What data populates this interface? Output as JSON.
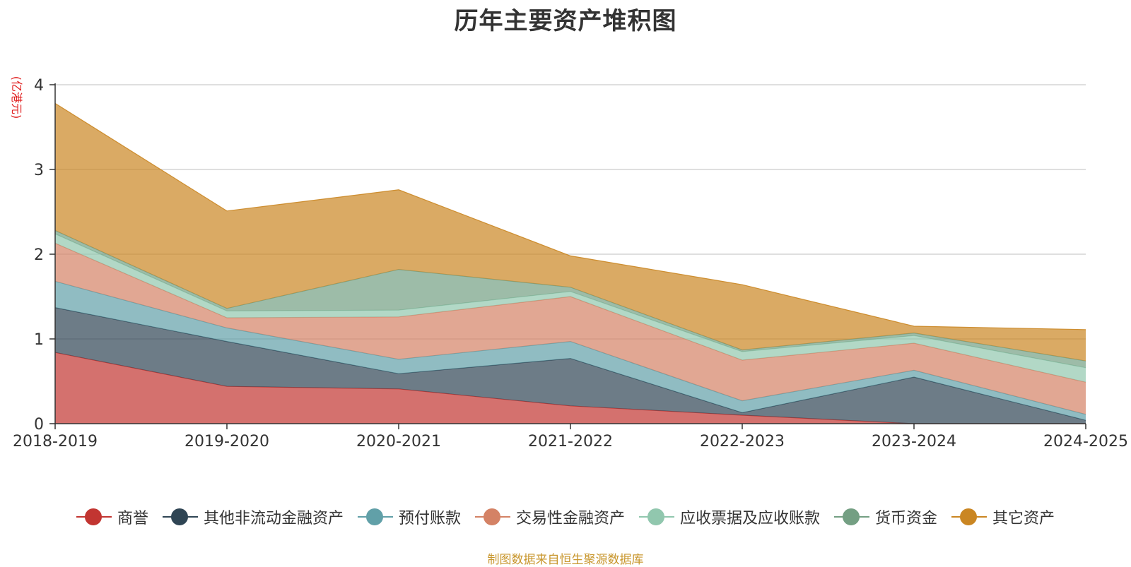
{
  "chart_data": {
    "type": "area",
    "stacked": true,
    "title": "历年主要资产堆积图",
    "ylabel": "(亿港元)",
    "xlabel": "",
    "categories": [
      "2018-2019",
      "2019-2020",
      "2020-2021",
      "2021-2022",
      "2022-2023",
      "2023-2024",
      "2024-2025"
    ],
    "ylim": [
      0,
      4
    ],
    "yticks": [
      0,
      1,
      2,
      3,
      4
    ],
    "grid": true,
    "legend_position": "bottom",
    "series": [
      {
        "name": "商誉",
        "color": "#c23531",
        "values": [
          0.84,
          0.44,
          0.41,
          0.21,
          0.1,
          0.0,
          0.0
        ]
      },
      {
        "name": "其他非流动金融资产",
        "color": "#2f4554",
        "values": [
          0.53,
          0.53,
          0.18,
          0.56,
          0.03,
          0.55,
          0.04
        ]
      },
      {
        "name": "预付账款",
        "color": "#61a0a8",
        "values": [
          0.31,
          0.16,
          0.17,
          0.2,
          0.14,
          0.08,
          0.07
        ]
      },
      {
        "name": "交易性金融资产",
        "color": "#d48265",
        "values": [
          0.45,
          0.12,
          0.5,
          0.53,
          0.48,
          0.32,
          0.38
        ]
      },
      {
        "name": "应收票据及应收账款",
        "color": "#91c7ae",
        "values": [
          0.11,
          0.08,
          0.08,
          0.06,
          0.1,
          0.09,
          0.17
        ]
      },
      {
        "name": "货币资金",
        "color": "#749f83",
        "values": [
          0.04,
          0.03,
          0.48,
          0.05,
          0.02,
          0.03,
          0.08
        ]
      },
      {
        "name": "其它资产",
        "color": "#ca8622",
        "values": [
          1.5,
          1.15,
          0.94,
          0.37,
          0.77,
          0.08,
          0.37
        ]
      }
    ]
  },
  "footer": {
    "source": "制图数据来自恒生聚源数据库"
  }
}
